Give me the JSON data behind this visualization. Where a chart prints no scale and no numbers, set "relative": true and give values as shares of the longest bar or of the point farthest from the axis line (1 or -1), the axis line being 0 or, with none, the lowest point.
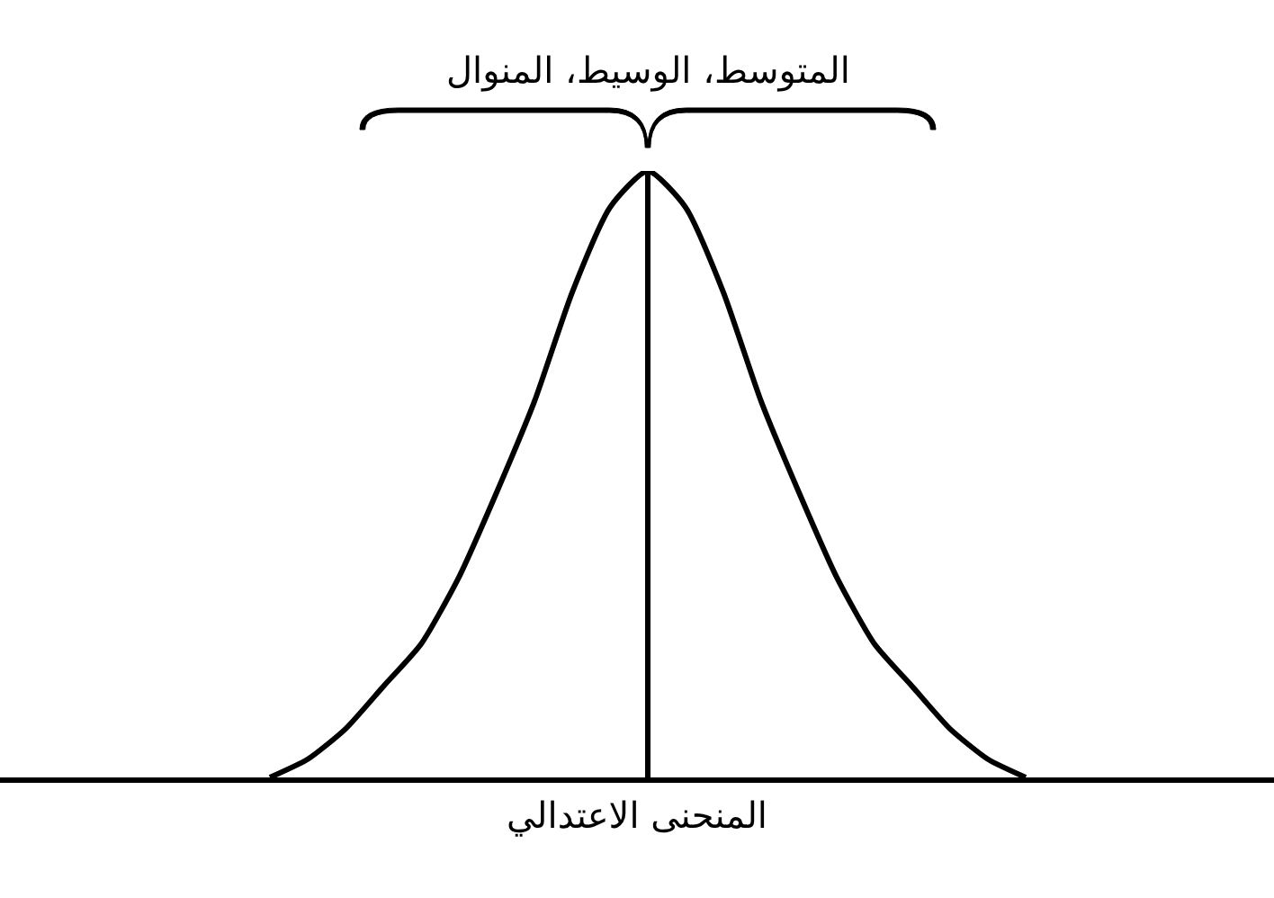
{
  "chart_data": {
    "type": "line",
    "relative": true,
    "xlabel": "المنحنى الاعتدالي",
    "categories": [
      null,
      null,
      null,
      null,
      null,
      null,
      null,
      null,
      null,
      null,
      null,
      null,
      null,
      null,
      null,
      null,
      null,
      null,
      null,
      null,
      null
    ],
    "series": [
      {
        "color": "#000000",
        "values": [
          0,
          0.03,
          0.08,
          0.15,
          0.22,
          0.33,
          0.47,
          0.62,
          0.8,
          0.94,
          1,
          0.94,
          0.8,
          0.62,
          0.47,
          0.33,
          0.22,
          0.15,
          0.08,
          0.03,
          0
        ]
      }
    ],
    "annotations": [
      "المتوسط، الوسيط، المنوال"
    ],
    "legend": false,
    "marker": "none",
    "line_style": "solid"
  }
}
